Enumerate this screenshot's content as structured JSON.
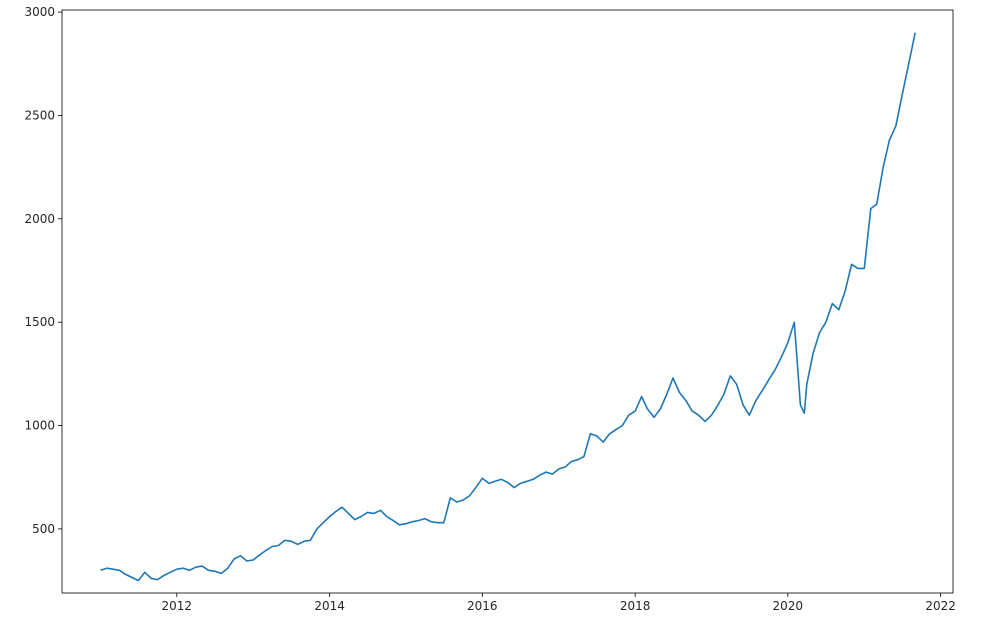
{
  "chart_data": {
    "type": "line",
    "title": "",
    "xlabel": "",
    "ylabel": "",
    "xlim": [
      "2010-07-01",
      "2022-03-01"
    ],
    "ylim": [
      190,
      3010
    ],
    "grid": false,
    "legend": "none",
    "line_color": "#1f77b4",
    "x_ticks": [
      {
        "value": "2012-01-01",
        "label": "2012"
      },
      {
        "value": "2014-01-01",
        "label": "2014"
      },
      {
        "value": "2016-01-01",
        "label": "2016"
      },
      {
        "value": "2018-01-01",
        "label": "2018"
      },
      {
        "value": "2020-01-01",
        "label": "2020"
      },
      {
        "value": "2022-01-01",
        "label": "2022"
      }
    ],
    "y_ticks": [
      {
        "value": 500,
        "label": "500"
      },
      {
        "value": 1000,
        "label": "1000"
      },
      {
        "value": 1500,
        "label": "1500"
      },
      {
        "value": 2000,
        "label": "2000"
      },
      {
        "value": 2500,
        "label": "2500"
      },
      {
        "value": 3000,
        "label": "3000"
      }
    ],
    "series": [
      {
        "x": [
          "2011-01-01",
          "2011-02-01",
          "2011-03-01",
          "2011-04-01",
          "2011-05-01",
          "2011-06-01",
          "2011-07-01",
          "2011-08-01",
          "2011-09-01",
          "2011-10-01",
          "2011-11-01",
          "2011-12-01",
          "2012-01-01",
          "2012-02-01",
          "2012-03-01",
          "2012-04-01",
          "2012-05-01",
          "2012-06-01",
          "2012-07-01",
          "2012-08-01",
          "2012-09-01",
          "2012-10-01",
          "2012-11-01",
          "2012-12-01",
          "2013-01-01",
          "2013-02-01",
          "2013-03-01",
          "2013-04-01",
          "2013-05-01",
          "2013-06-01",
          "2013-07-01",
          "2013-08-01",
          "2013-09-01",
          "2013-10-01",
          "2013-11-01",
          "2013-12-01",
          "2014-01-01",
          "2014-02-01",
          "2014-03-01",
          "2014-04-01",
          "2014-05-01",
          "2014-06-01",
          "2014-07-01",
          "2014-08-01",
          "2014-09-01",
          "2014-10-01",
          "2014-11-01",
          "2014-12-01",
          "2015-01-01",
          "2015-02-01",
          "2015-03-01",
          "2015-04-01",
          "2015-05-01",
          "2015-06-01",
          "2015-07-01",
          "2015-08-01",
          "2015-09-01",
          "2015-10-01",
          "2015-11-01",
          "2015-12-01",
          "2016-01-01",
          "2016-02-01",
          "2016-03-01",
          "2016-04-01",
          "2016-05-01",
          "2016-06-01",
          "2016-07-01",
          "2016-08-01",
          "2016-09-01",
          "2016-10-01",
          "2016-11-01",
          "2016-12-01",
          "2017-01-01",
          "2017-02-01",
          "2017-03-01",
          "2017-04-01",
          "2017-05-01",
          "2017-06-01",
          "2017-07-01",
          "2017-08-01",
          "2017-09-01",
          "2017-10-01",
          "2017-11-01",
          "2017-12-01",
          "2018-01-01",
          "2018-02-01",
          "2018-03-01",
          "2018-04-01",
          "2018-05-01",
          "2018-06-01",
          "2018-07-01",
          "2018-08-01",
          "2018-09-01",
          "2018-10-01",
          "2018-11-01",
          "2018-12-01",
          "2019-01-01",
          "2019-02-01",
          "2019-03-01",
          "2019-04-01",
          "2019-05-01",
          "2019-06-01",
          "2019-07-01",
          "2019-08-01",
          "2019-09-01",
          "2019-10-01",
          "2019-11-01",
          "2019-12-01",
          "2020-01-01",
          "2020-02-01",
          "2020-03-01",
          "2020-03-20",
          "2020-04-01",
          "2020-05-01",
          "2020-06-01",
          "2020-07-01",
          "2020-08-01",
          "2020-09-01",
          "2020-10-01",
          "2020-11-01",
          "2020-12-01",
          "2021-01-01",
          "2021-02-01",
          "2021-03-01",
          "2021-04-01",
          "2021-05-01",
          "2021-06-01",
          "2021-07-01",
          "2021-08-01",
          "2021-09-01"
        ],
        "y": [
          300,
          310,
          305,
          300,
          280,
          265,
          250,
          290,
          260,
          255,
          275,
          290,
          305,
          310,
          300,
          315,
          320,
          300,
          295,
          285,
          310,
          355,
          370,
          345,
          350,
          375,
          395,
          415,
          420,
          445,
          440,
          425,
          440,
          445,
          500,
          530,
          560,
          585,
          605,
          575,
          545,
          560,
          580,
          575,
          590,
          560,
          540,
          520,
          525,
          535,
          540,
          550,
          535,
          530,
          530,
          650,
          630,
          640,
          660,
          700,
          745,
          720,
          730,
          740,
          725,
          700,
          720,
          730,
          740,
          760,
          775,
          765,
          790,
          800,
          825,
          835,
          850,
          960,
          950,
          920,
          960,
          980,
          1000,
          1050,
          1070,
          1140,
          1080,
          1040,
          1080,
          1150,
          1230,
          1160,
          1120,
          1070,
          1050,
          1020,
          1050,
          1100,
          1150,
          1240,
          1200,
          1100,
          1050,
          1120,
          1170,
          1220,
          1270,
          1330,
          1400,
          1500,
          1100,
          1060,
          1200,
          1350,
          1450,
          1500,
          1590,
          1560,
          1650,
          1780,
          1760,
          1760,
          2050,
          2070,
          2250,
          2380,
          2450,
          2600,
          2750,
          2900
        ]
      }
    ]
  }
}
